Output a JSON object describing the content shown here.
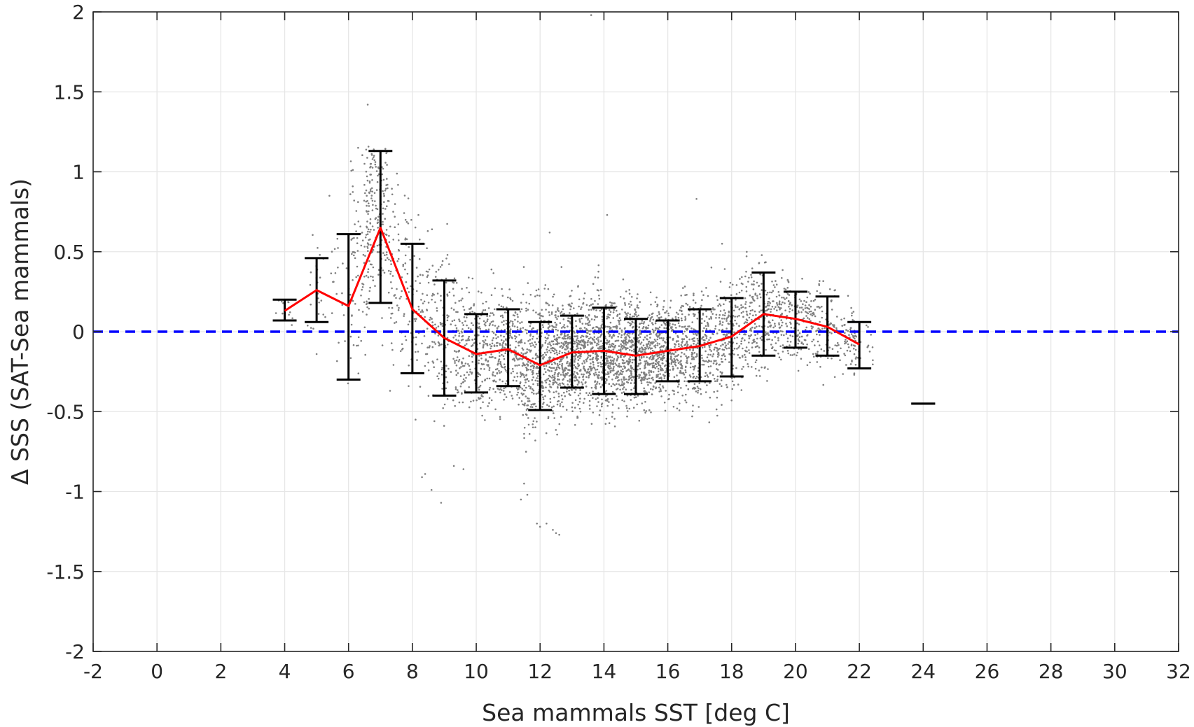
{
  "chart_data": {
    "type": "scatter",
    "xlabel": "Sea mammals SST [deg C]",
    "ylabel": "Δ SSS (SAT-Sea mammals)",
    "xlim": [
      -2,
      32
    ],
    "ylim": [
      -2,
      2
    ],
    "x_ticks": [
      -2,
      0,
      2,
      4,
      6,
      8,
      10,
      12,
      14,
      16,
      18,
      20,
      22,
      24,
      26,
      28,
      30,
      32
    ],
    "y_ticks": [
      -2,
      -1.5,
      -1,
      -0.5,
      0,
      0.5,
      1,
      1.5,
      2
    ],
    "grid": true,
    "colors": {
      "scatter": "#808080",
      "mean_line": "#ff0000",
      "error_bars": "#000000",
      "zero_line": "#0000ff",
      "grid": "#e6e6e6",
      "axes": "#262626"
    },
    "zero_reference": {
      "y": 0,
      "style": "dashed"
    },
    "binned_mean": {
      "x": [
        4,
        5,
        6,
        7,
        8,
        9,
        10,
        11,
        12,
        13,
        14,
        15,
        16,
        17,
        18,
        19,
        20,
        21,
        22
      ],
      "y": [
        0.13,
        0.26,
        0.16,
        0.65,
        0.14,
        -0.04,
        -0.14,
        -0.11,
        -0.21,
        -0.13,
        -0.12,
        -0.15,
        -0.12,
        -0.09,
        -0.03,
        0.11,
        0.08,
        0.03,
        -0.08
      ]
    },
    "error_bars": [
      {
        "x": 4,
        "low": 0.07,
        "high": 0.2
      },
      {
        "x": 5,
        "low": 0.06,
        "high": 0.46
      },
      {
        "x": 6,
        "low": -0.3,
        "high": 0.61
      },
      {
        "x": 7,
        "low": 0.18,
        "high": 1.13
      },
      {
        "x": 8,
        "low": -0.26,
        "high": 0.55
      },
      {
        "x": 9,
        "low": -0.4,
        "high": 0.32
      },
      {
        "x": 10,
        "low": -0.38,
        "high": 0.11
      },
      {
        "x": 11,
        "low": -0.34,
        "high": 0.14
      },
      {
        "x": 12,
        "low": -0.49,
        "high": 0.06
      },
      {
        "x": 13,
        "low": -0.35,
        "high": 0.1
      },
      {
        "x": 14,
        "low": -0.39,
        "high": 0.15
      },
      {
        "x": 15,
        "low": -0.39,
        "high": 0.08
      },
      {
        "x": 16,
        "low": -0.31,
        "high": 0.07
      },
      {
        "x": 17,
        "low": -0.31,
        "high": 0.14
      },
      {
        "x": 18,
        "low": -0.28,
        "high": 0.21
      },
      {
        "x": 19,
        "low": -0.15,
        "high": 0.37
      },
      {
        "x": 20,
        "low": -0.1,
        "high": 0.25
      },
      {
        "x": 21,
        "low": -0.15,
        "high": 0.22
      },
      {
        "x": 22,
        "low": -0.23,
        "high": 0.06
      },
      {
        "x": 24,
        "low": -0.45,
        "high": -0.45
      }
    ],
    "scatter_bins": [
      {
        "x": 4.0,
        "mean": 0.13,
        "sd": 0.07,
        "n": 12
      },
      {
        "x": 5.0,
        "mean": 0.26,
        "sd": 0.2,
        "n": 22
      },
      {
        "x": 5.8,
        "mean": 0.18,
        "sd": 0.3,
        "n": 30
      },
      {
        "x": 6.4,
        "mean": 0.5,
        "sd": 0.4,
        "n": 90
      },
      {
        "x": 6.9,
        "mean": 0.75,
        "sd": 0.35,
        "n": 160
      },
      {
        "x": 7.6,
        "mean": 0.35,
        "sd": 0.4,
        "n": 90
      },
      {
        "x": 8.3,
        "mean": 0.08,
        "sd": 0.35,
        "n": 90
      },
      {
        "x": 9.0,
        "mean": -0.04,
        "sd": 0.35,
        "n": 110
      },
      {
        "x": 9.7,
        "mean": -0.1,
        "sd": 0.25,
        "n": 150
      },
      {
        "x": 10.4,
        "mean": -0.12,
        "sd": 0.23,
        "n": 170
      },
      {
        "x": 11.1,
        "mean": -0.11,
        "sd": 0.23,
        "n": 200
      },
      {
        "x": 11.8,
        "mean": -0.19,
        "sd": 0.27,
        "n": 250
      },
      {
        "x": 12.5,
        "mean": -0.17,
        "sd": 0.25,
        "n": 300
      },
      {
        "x": 13.2,
        "mean": -0.13,
        "sd": 0.24,
        "n": 330
      },
      {
        "x": 13.9,
        "mean": -0.12,
        "sd": 0.25,
        "n": 340
      },
      {
        "x": 14.6,
        "mean": -0.14,
        "sd": 0.23,
        "n": 330
      },
      {
        "x": 15.3,
        "mean": -0.14,
        "sd": 0.22,
        "n": 300
      },
      {
        "x": 16.0,
        "mean": -0.12,
        "sd": 0.2,
        "n": 260
      },
      {
        "x": 16.7,
        "mean": -0.1,
        "sd": 0.22,
        "n": 200
      },
      {
        "x": 17.4,
        "mean": -0.07,
        "sd": 0.23,
        "n": 170
      },
      {
        "x": 18.1,
        "mean": -0.02,
        "sd": 0.25,
        "n": 160
      },
      {
        "x": 18.8,
        "mean": 0.1,
        "sd": 0.25,
        "n": 160
      },
      {
        "x": 19.5,
        "mean": 0.1,
        "sd": 0.18,
        "n": 130
      },
      {
        "x": 20.2,
        "mean": 0.07,
        "sd": 0.17,
        "n": 110
      },
      {
        "x": 20.9,
        "mean": 0.03,
        "sd": 0.18,
        "n": 90
      },
      {
        "x": 21.6,
        "mean": -0.04,
        "sd": 0.15,
        "n": 60
      },
      {
        "x": 22.1,
        "mean": -0.08,
        "sd": 0.14,
        "n": 30
      }
    ],
    "outlier_points": [
      [
        13.6,
        1.98
      ],
      [
        6.6,
        1.42
      ],
      [
        16.9,
        0.83
      ],
      [
        14.1,
        0.73
      ],
      [
        12.3,
        0.62
      ],
      [
        17.7,
        0.55
      ],
      [
        11.4,
        -1.05
      ],
      [
        11.6,
        -1.02
      ],
      [
        11.9,
        -1.2
      ],
      [
        12.0,
        -1.22
      ],
      [
        12.2,
        -1.2
      ],
      [
        12.5,
        -1.26
      ],
      [
        12.6,
        -1.27
      ],
      [
        8.6,
        -0.99
      ],
      [
        8.9,
        -1.07
      ],
      [
        8.4,
        -0.89
      ],
      [
        8.3,
        -0.91
      ],
      [
        9.3,
        -0.84
      ],
      [
        9.6,
        -0.86
      ],
      [
        11.5,
        -0.95
      ],
      [
        12.4,
        -1.24
      ],
      [
        7.1,
        0.95
      ],
      [
        7.4,
        0.75
      ],
      [
        5.4,
        0.85
      ],
      [
        6.3,
        1.15
      ],
      [
        6.8,
        1.1
      ],
      [
        5.1,
        0.48
      ],
      [
        5.0,
        -0.14
      ],
      [
        7.3,
        -0.37
      ],
      [
        8.1,
        -0.55
      ],
      [
        9.1,
        0.48
      ],
      [
        6.5,
        1.05
      ]
    ]
  }
}
